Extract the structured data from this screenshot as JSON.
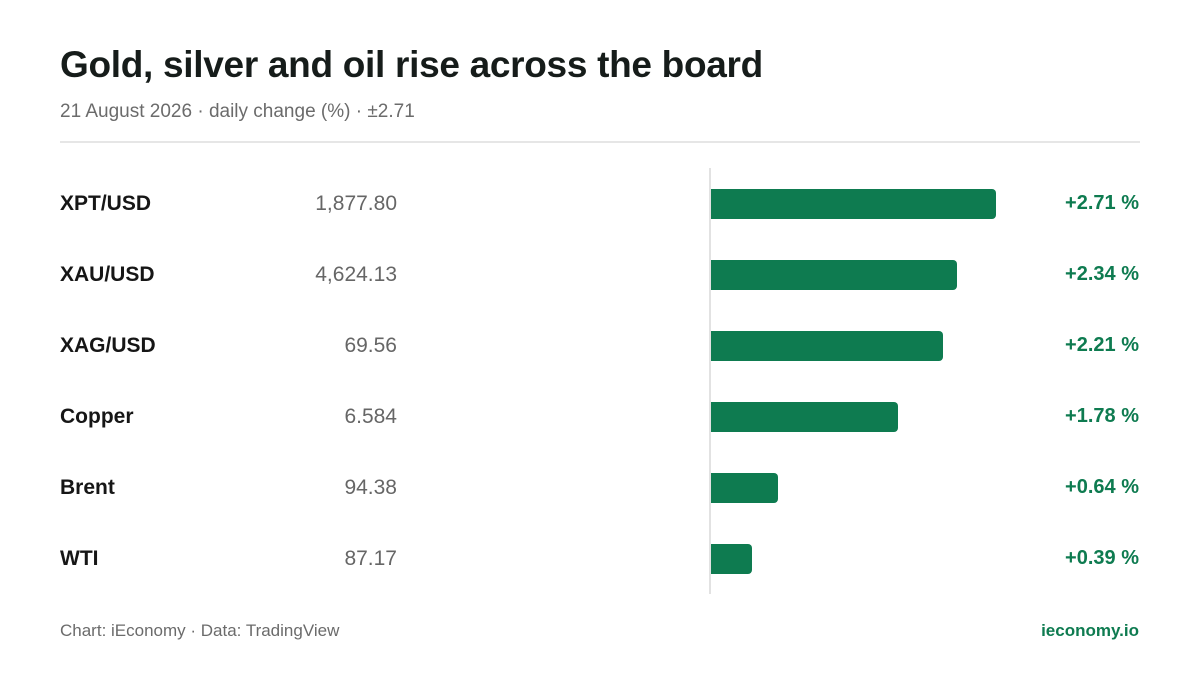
{
  "title": "Gold, silver and oil rise across the board",
  "subtitle": "21 August 2026 · daily change (%) · ±2.71",
  "footer": {
    "source": "Chart: iEconomy · Data: TradingView",
    "brand": "ieconomy.io"
  },
  "colors": {
    "positive": "#0e7b50",
    "axis": "#e2e2e2"
  },
  "chart_data": {
    "type": "bar",
    "orientation": "horizontal",
    "categories": [
      "XPT/USD",
      "XAU/USD",
      "XAG/USD",
      "Copper",
      "Brent",
      "WTI"
    ],
    "prices": [
      "1,877.80",
      "4,624.13",
      "69.56",
      "6.584",
      "94.38",
      "87.17"
    ],
    "values": [
      2.71,
      2.34,
      2.21,
      1.78,
      0.64,
      0.39
    ],
    "value_labels": [
      "+2.71 %",
      "+2.34 %",
      "+2.21 %",
      "+1.78 %",
      "+0.64 %",
      "+0.39 %"
    ],
    "xlim": [
      -2.71,
      2.71
    ],
    "grid": false
  }
}
